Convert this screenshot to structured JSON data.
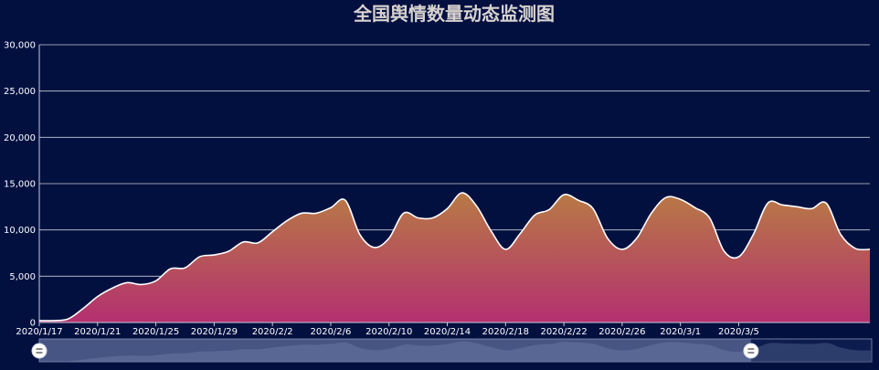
{
  "chart_data": {
    "type": "area",
    "title": "全国舆情数量动态监测图",
    "xlabel": "",
    "ylabel": "",
    "ylim": [
      0,
      30000
    ],
    "yticks": [
      0,
      5000,
      10000,
      15000,
      20000,
      25000,
      30000
    ],
    "ytick_labels": [
      "0",
      "5,000",
      "10,000",
      "15,000",
      "20,000",
      "25,000",
      "30,000"
    ],
    "x_start": "2020/1/17",
    "xtick_labels": [
      "2020/1/17",
      "2020/1/21",
      "2020/1/25",
      "2020/1/29",
      "2020/2/2",
      "2020/2/6",
      "2020/2/10",
      "2020/2/14",
      "2020/2/18",
      "2020/2/22",
      "2020/2/26",
      "2020/3/1",
      "2020/3/5"
    ],
    "grid": true,
    "legend": "none",
    "series": [
      {
        "values": [
          200,
          200,
          400,
          1500,
          2800,
          3700,
          4300,
          4100,
          4500,
          5800,
          5900,
          7100,
          7300,
          7700,
          8700,
          8600,
          9800,
          11000,
          11800,
          11800,
          12400,
          13200,
          9500,
          8100,
          9100,
          11800,
          11300,
          11300,
          12300,
          14000,
          12600,
          9900,
          7900,
          9600,
          11600,
          12200,
          13800,
          13200,
          12300,
          9100,
          7900,
          9100,
          11800,
          13500,
          13300,
          12400,
          11300,
          7700,
          7100,
          9500,
          12900,
          12700,
          12500,
          12300,
          12900,
          9500,
          8000,
          7900
        ],
        "line_color": "#ffffff",
        "fill_top": "#b87a45",
        "fill_bottom": "#b43070"
      }
    ],
    "datazoom": {
      "start": 0,
      "end": 0.855
    }
  }
}
